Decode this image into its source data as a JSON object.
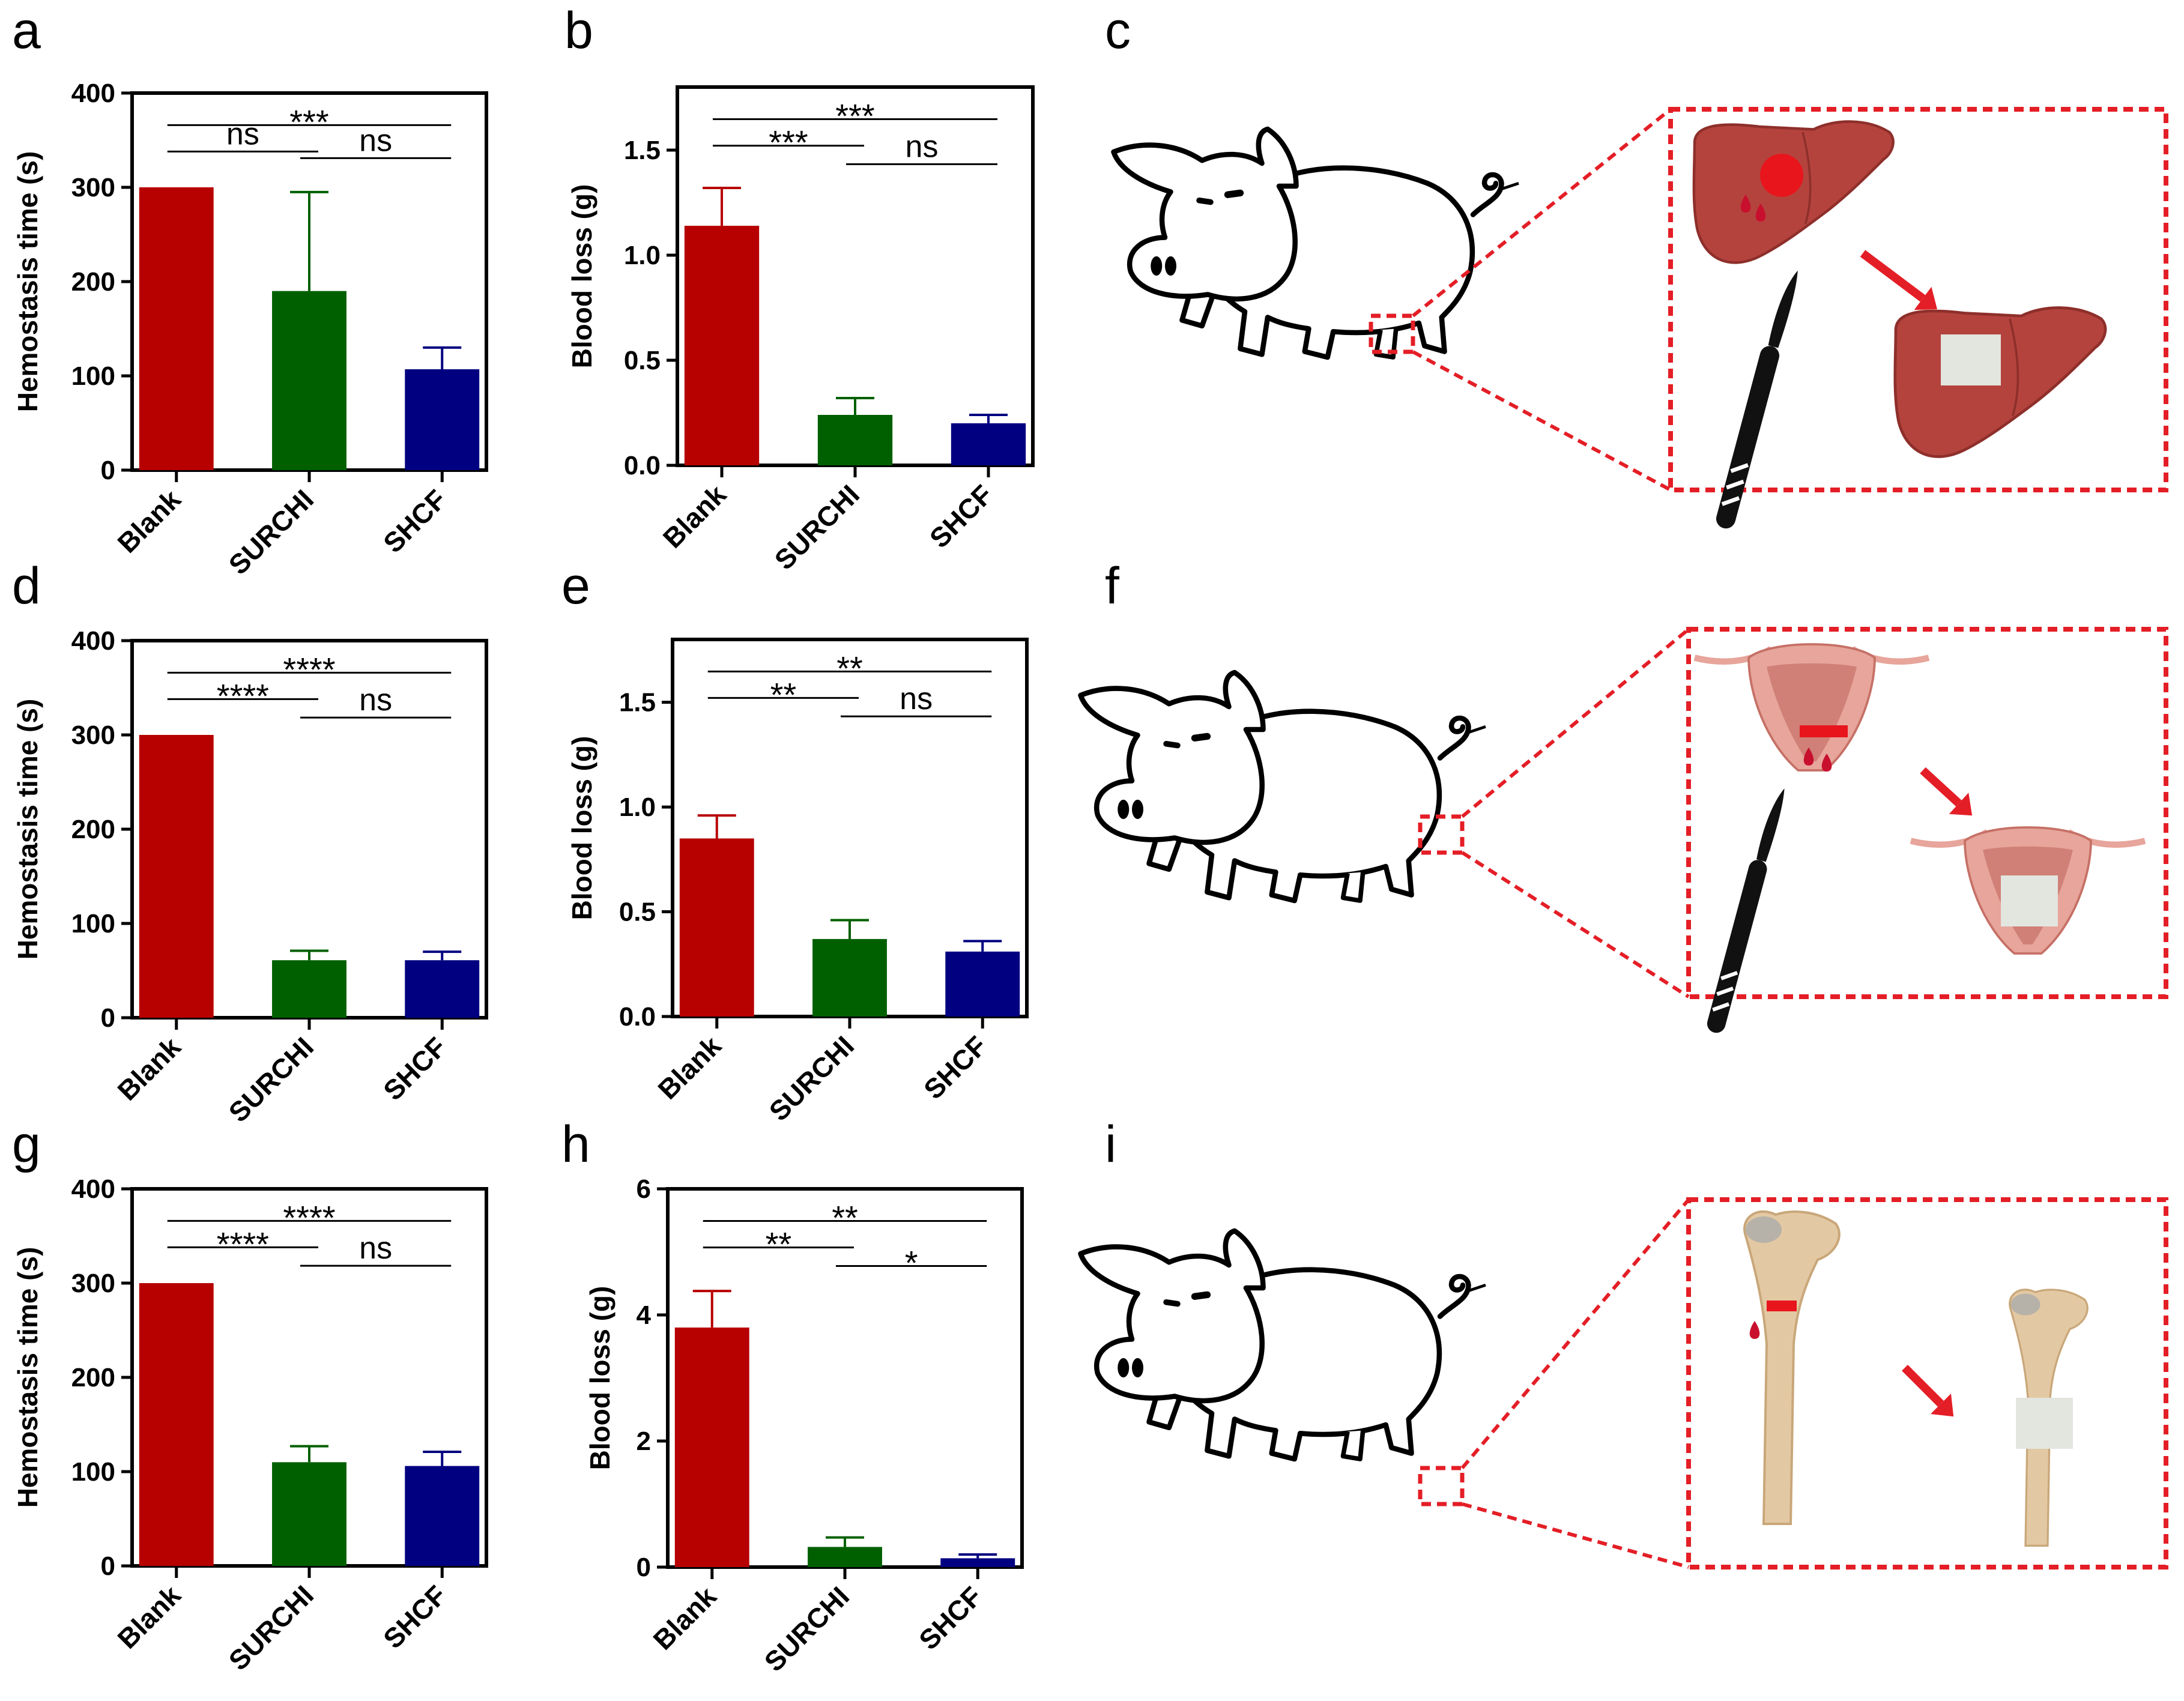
{
  "colors": {
    "Blank": "#b70000",
    "SURCHI": "#006000",
    "SHCF": "#000080",
    "dash_red": "#e41e26",
    "liver": "#b5433d",
    "liver_dark": "#8e2f2b",
    "uterus": "#e7a59b",
    "uterus_dark": "#c67066",
    "bone": "#e3c9a3",
    "bone_dark": "#c9a77a",
    "gauze": "#e3e5df"
  },
  "categories": [
    "Blank",
    "SURCHI",
    "SHCF"
  ],
  "chart_data": [
    {
      "panel": "a",
      "type": "bar",
      "title": "",
      "xlabel": "",
      "ylabel": "Hemostasis time (s)",
      "categories": [
        "Blank",
        "SURCHI",
        "SHCF"
      ],
      "values": [
        300,
        190,
        107
      ],
      "errors": [
        0,
        105,
        23
      ],
      "ylim": [
        0,
        400
      ],
      "yticks": [
        "0",
        "100",
        "200",
        "300",
        "400"
      ],
      "significance": [
        {
          "from": "Blank",
          "to": "SURCHI",
          "label": "ns"
        },
        {
          "from": "SURCHI",
          "to": "SHCF",
          "label": "ns"
        },
        {
          "from": "Blank",
          "to": "SHCF",
          "label": "***"
        }
      ]
    },
    {
      "panel": "b",
      "type": "bar",
      "title": "",
      "xlabel": "",
      "ylabel": "Blood loss  (g)",
      "categories": [
        "Blank",
        "SURCHI",
        "SHCF"
      ],
      "values": [
        1.14,
        0.24,
        0.2
      ],
      "errors": [
        0.18,
        0.08,
        0.04
      ],
      "ylim": [
        0,
        1.8
      ],
      "yticks": [
        "0.0",
        "0.5",
        "1.0",
        "1.5"
      ],
      "significance": [
        {
          "from": "Blank",
          "to": "SURCHI",
          "label": "***"
        },
        {
          "from": "SURCHI",
          "to": "SHCF",
          "label": "ns"
        },
        {
          "from": "Blank",
          "to": "SHCF",
          "label": "***"
        }
      ]
    },
    {
      "panel": "d",
      "type": "bar",
      "title": "",
      "xlabel": "",
      "ylabel": "Hemostasis time (s)",
      "categories": [
        "Blank",
        "SURCHI",
        "SHCF"
      ],
      "values": [
        300,
        61,
        61
      ],
      "errors": [
        0,
        10,
        9
      ],
      "ylim": [
        0,
        400
      ],
      "yticks": [
        "0",
        "100",
        "200",
        "300",
        "400"
      ],
      "significance": [
        {
          "from": "Blank",
          "to": "SURCHI",
          "label": "****"
        },
        {
          "from": "SURCHI",
          "to": "SHCF",
          "label": "ns"
        },
        {
          "from": "Blank",
          "to": "SHCF",
          "label": "****"
        }
      ]
    },
    {
      "panel": "e",
      "type": "bar",
      "title": "",
      "xlabel": "",
      "ylabel": "Blood loss  (g)",
      "categories": [
        "Blank",
        "SURCHI",
        "SHCF"
      ],
      "values": [
        0.85,
        0.37,
        0.31
      ],
      "errors": [
        0.11,
        0.09,
        0.05
      ],
      "ylim": [
        0,
        1.8
      ],
      "yticks": [
        "0.0",
        "0.5",
        "1.0",
        "1.5"
      ],
      "significance": [
        {
          "from": "Blank",
          "to": "SURCHI",
          "label": "**"
        },
        {
          "from": "SURCHI",
          "to": "SHCF",
          "label": "ns"
        },
        {
          "from": "Blank",
          "to": "SHCF",
          "label": "**"
        }
      ]
    },
    {
      "panel": "g",
      "type": "bar",
      "title": "",
      "xlabel": "",
      "ylabel": "Hemostasis time (s)",
      "categories": [
        "Blank",
        "SURCHI",
        "SHCF"
      ],
      "values": [
        300,
        110,
        106
      ],
      "errors": [
        0,
        17,
        15
      ],
      "ylim": [
        0,
        400
      ],
      "yticks": [
        "0",
        "100",
        "200",
        "300",
        "400"
      ],
      "significance": [
        {
          "from": "Blank",
          "to": "SURCHI",
          "label": "****"
        },
        {
          "from": "SURCHI",
          "to": "SHCF",
          "label": "ns"
        },
        {
          "from": "Blank",
          "to": "SHCF",
          "label": "****"
        }
      ]
    },
    {
      "panel": "h",
      "type": "bar",
      "title": "",
      "xlabel": "",
      "ylabel": "Blood loss  (g)",
      "categories": [
        "Blank",
        "SURCHI",
        "SHCF"
      ],
      "values": [
        3.8,
        0.32,
        0.14
      ],
      "errors": [
        0.58,
        0.15,
        0.06
      ],
      "ylim": [
        0,
        6
      ],
      "yticks": [
        "0",
        "2",
        "4",
        "6"
      ],
      "significance": [
        {
          "from": "Blank",
          "to": "SURCHI",
          "label": "**"
        },
        {
          "from": "SURCHI",
          "to": "SHCF",
          "label": "*"
        },
        {
          "from": "Blank",
          "to": "SHCF",
          "label": "**"
        }
      ]
    }
  ],
  "illustrations": [
    {
      "panel": "c",
      "organ": "liver"
    },
    {
      "panel": "f",
      "organ": "uterus"
    },
    {
      "panel": "i",
      "organ": "femur"
    }
  ]
}
